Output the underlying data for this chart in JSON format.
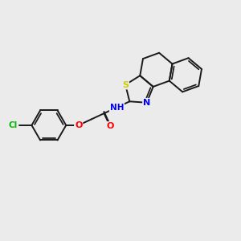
{
  "background_color": "#ebebeb",
  "bond_color": "#1a1a1a",
  "bond_width": 1.4,
  "atom_colors": {
    "N": "#0000ff",
    "O": "#ff0000",
    "S": "#cccc00",
    "Cl": "#00bb00",
    "H": "#666666",
    "C": "#1a1a1a"
  },
  "figsize": [
    3.0,
    3.0
  ],
  "dpi": 100
}
